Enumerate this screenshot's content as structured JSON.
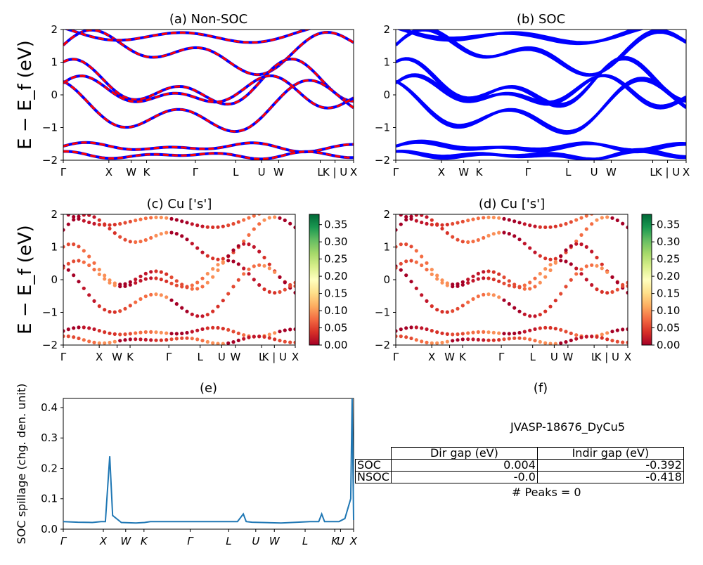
{
  "chart_data": [
    {
      "panel": "a",
      "type": "line",
      "title": "(a) Non-SOC",
      "ylabel": "E − E_f (eV)",
      "ylim": [
        -2,
        2
      ],
      "yticks": [
        "2",
        "1",
        "0",
        "−1",
        "−2"
      ],
      "kpath": [
        "Γ",
        "X",
        "W",
        "K",
        "Γ",
        "L",
        "U",
        "W",
        "L",
        "K | U",
        "X"
      ],
      "series_colors": [
        "#0000ff",
        "#ff0000"
      ],
      "line_style": "blue solid with red dashed overlay"
    },
    {
      "panel": "b",
      "type": "line",
      "title": "(b) SOC",
      "ylim": [
        -2,
        2
      ],
      "yticks": [
        "2",
        "1",
        "0",
        "−1",
        "−2"
      ],
      "kpath": [
        "Γ",
        "X",
        "W",
        "K",
        "Γ",
        "L",
        "U",
        "W",
        "L",
        "K | U",
        "X"
      ],
      "series_colors": [
        "#0000ff"
      ]
    },
    {
      "panel": "c",
      "type": "scatter",
      "title": "(c)  Cu ['s']",
      "ylabel": "E − E_f (eV)",
      "ylim": [
        -2,
        2
      ],
      "yticks": [
        "2",
        "1",
        "0",
        "−1",
        "−2"
      ],
      "kpath": [
        "Γ",
        "X",
        "W",
        "K",
        "Γ",
        "L",
        "U",
        "W",
        "L",
        "K | U",
        "X"
      ],
      "colorbar": {
        "colormap": "RdYlGn",
        "range": [
          0.0,
          0.38
        ],
        "ticks": [
          "0.35",
          "0.30",
          "0.25",
          "0.20",
          "0.15",
          "0.10",
          "0.05",
          "0.00"
        ]
      }
    },
    {
      "panel": "d",
      "type": "scatter",
      "title": "(d) Cu ['s']",
      "ylim": [
        -2,
        2
      ],
      "yticks": [
        "2",
        "1",
        "0",
        "−1",
        "−2"
      ],
      "kpath": [
        "Γ",
        "X",
        "W",
        "K",
        "Γ",
        "L",
        "U",
        "W",
        "L",
        "K | U",
        "X"
      ],
      "colorbar": {
        "colormap": "RdYlGn",
        "range": [
          0.0,
          0.38
        ],
        "ticks": [
          "0.35",
          "0.30",
          "0.25",
          "0.20",
          "0.15",
          "0.10",
          "0.05",
          "0.00"
        ]
      }
    },
    {
      "panel": "e",
      "type": "line",
      "title": "(e)",
      "ylabel": "SOC spillage (chg. den. unit)",
      "ylim": [
        0,
        0.43
      ],
      "yticks": [
        "0.4",
        "0.3",
        "0.2",
        "0.1",
        "0.0"
      ],
      "kpath": [
        "Γ",
        "X",
        "W",
        "K",
        "Γ",
        "L",
        "U",
        "W",
        "L",
        "K",
        "U",
        "X"
      ],
      "series": [
        {
          "color": "#1f77b4",
          "x": [
            0,
            0.05,
            0.1,
            0.13,
            0.145,
            0.16,
            0.17,
            0.2,
            0.25,
            0.28,
            0.3,
            0.4,
            0.5,
            0.6,
            0.62,
            0.63,
            0.65,
            0.75,
            0.85,
            0.88,
            0.89,
            0.9,
            0.95,
            0.97,
            0.99,
            0.995,
            1.0
          ],
          "values": [
            0.025,
            0.023,
            0.022,
            0.025,
            0.025,
            0.24,
            0.045,
            0.022,
            0.02,
            0.022,
            0.025,
            0.025,
            0.025,
            0.025,
            0.05,
            0.025,
            0.023,
            0.02,
            0.025,
            0.025,
            0.05,
            0.025,
            0.025,
            0.035,
            0.1,
            0.43,
            0.03
          ]
        }
      ]
    }
  ],
  "table": {
    "title": "(f)",
    "material": "JVASP-18676_DyCu5",
    "headers": [
      "Dir gap (eV)",
      "Indir gap (eV)"
    ],
    "rows": [
      {
        "label": "SOC",
        "dir": "0.004",
        "indir": "-0.392"
      },
      {
        "label": "NSOC",
        "dir": "-0.0",
        "indir": "-0.418"
      }
    ],
    "peaks": "# Peaks = 0"
  }
}
